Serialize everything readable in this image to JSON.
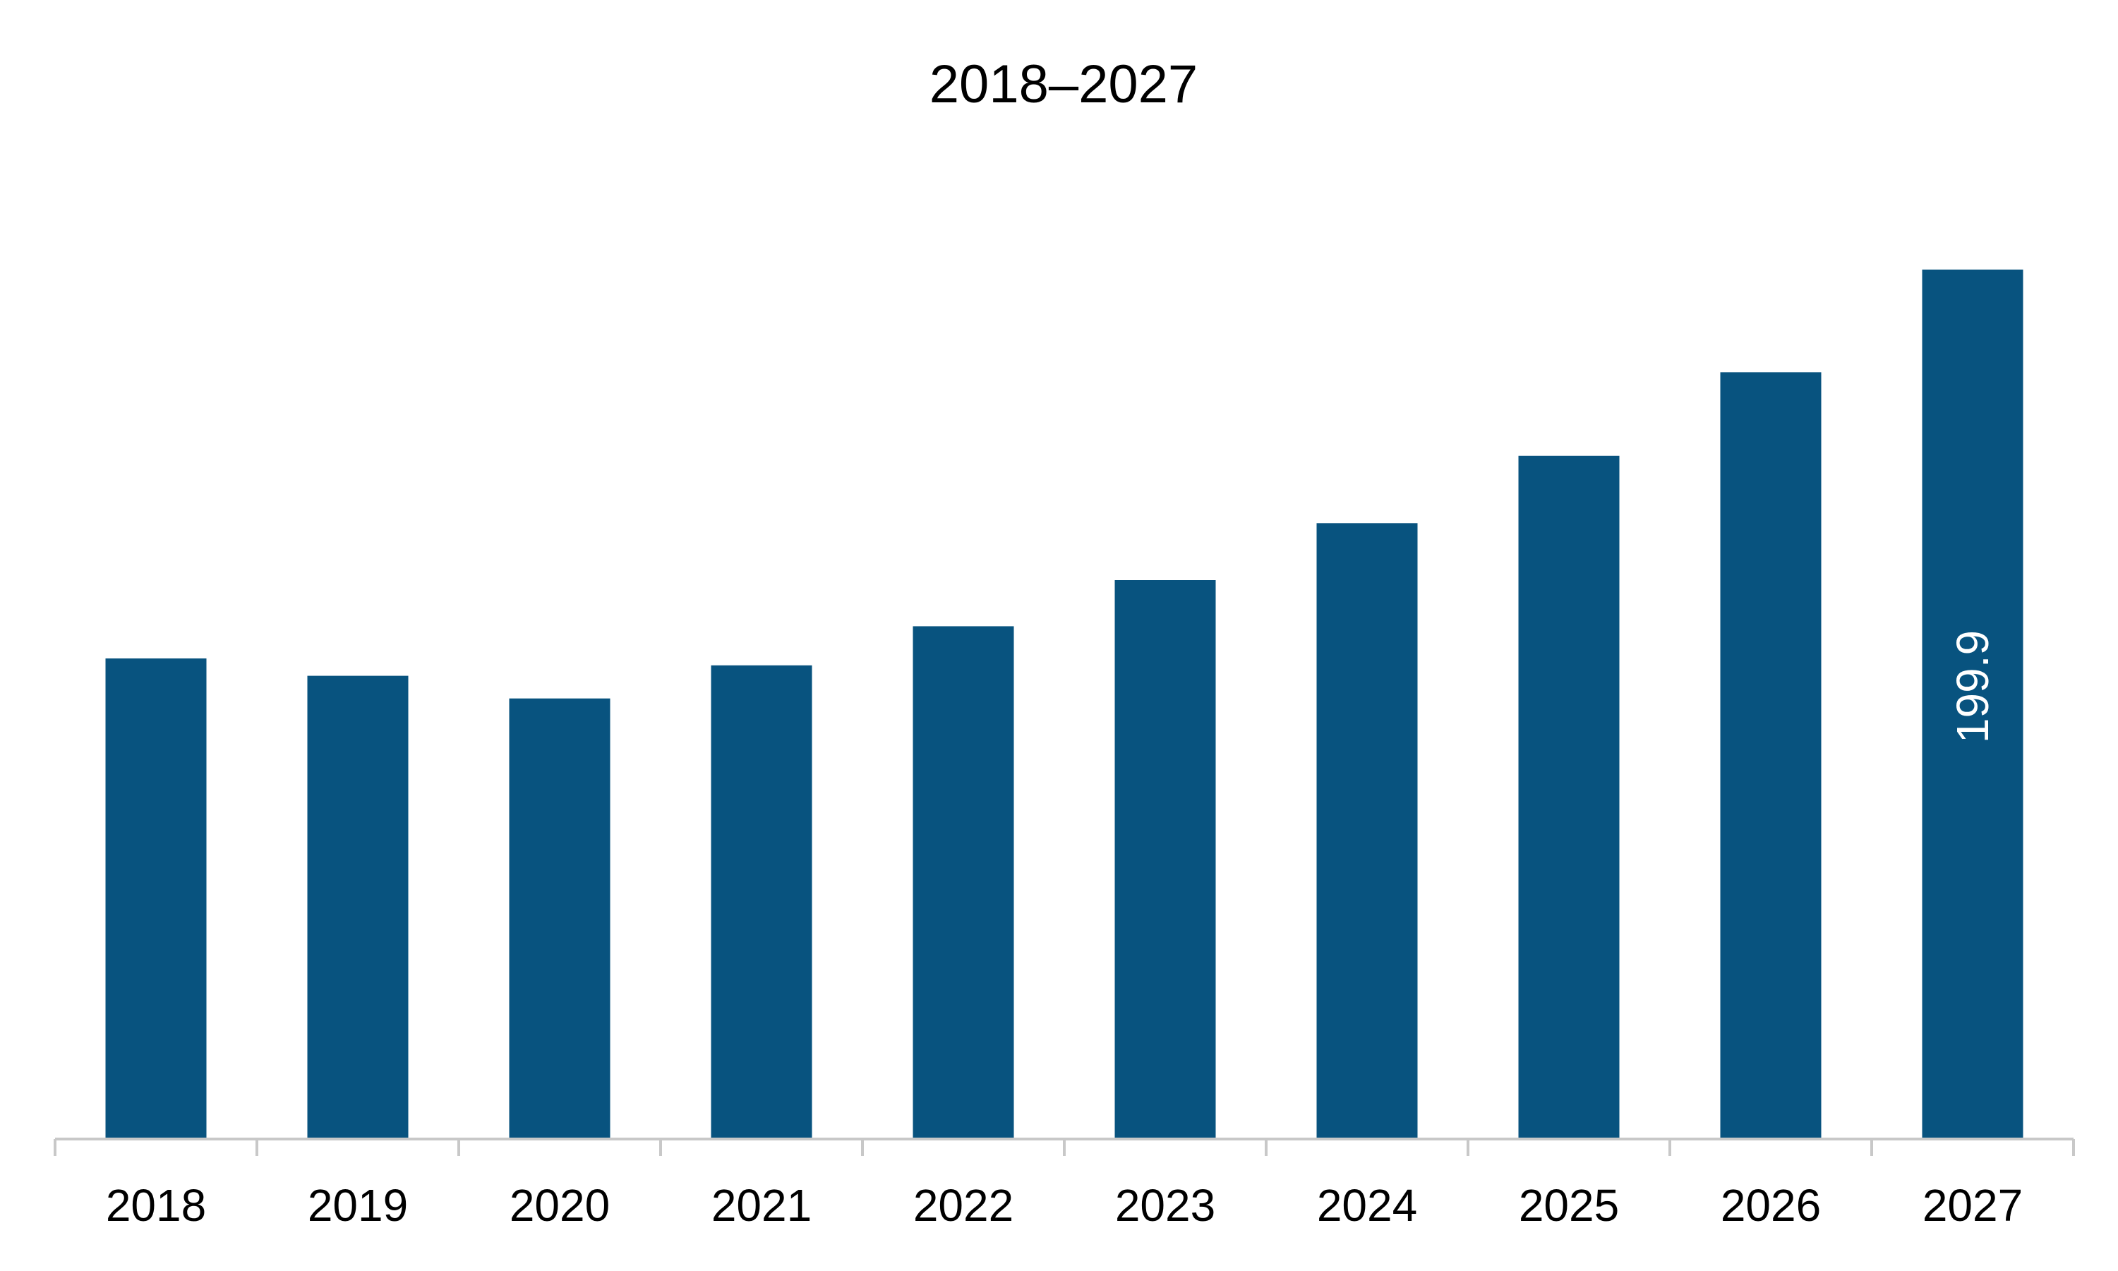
{
  "chart_data": {
    "type": "bar",
    "title": "2018–2027",
    "xlabel": "",
    "ylabel": "",
    "categories": [
      "2018",
      "2019",
      "2020",
      "2021",
      "2022",
      "2023",
      "2024",
      "2025",
      "2026",
      "2027"
    ],
    "values": [
      110.5,
      106.5,
      101.3,
      108.9,
      117.9,
      128.5,
      141.6,
      157.1,
      176.3,
      199.9
    ],
    "data_labels": [
      "",
      "",
      "",
      "",
      "",
      "",
      "",
      "",
      "",
      "199.9"
    ],
    "ylim": [
      0,
      230
    ],
    "grid": false,
    "legend": "none",
    "colors": {
      "bar": "#08537f",
      "axis": "#c8c8c8",
      "text": "#000000",
      "data_label": "#ffffff"
    }
  }
}
